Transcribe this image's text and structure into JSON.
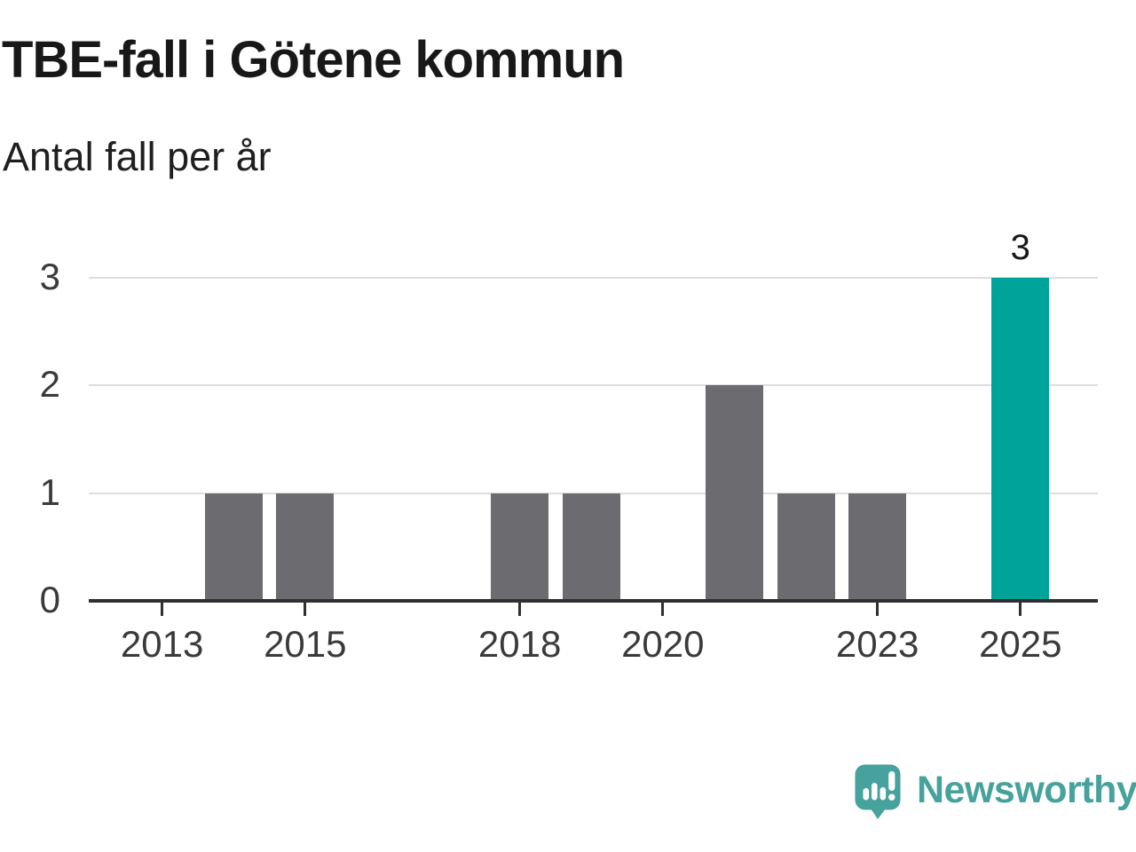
{
  "header": {
    "title": "TBE-fall i Götene kommun",
    "subtitle": "Antal fall per år"
  },
  "chart_data": {
    "type": "bar",
    "title": "TBE-fall i Götene kommun",
    "subtitle": "Antal fall per år",
    "ylabel": "Antal fall per år",
    "xlabel": "",
    "categories": [
      2012,
      2013,
      2014,
      2015,
      2016,
      2017,
      2018,
      2019,
      2020,
      2021,
      2022,
      2023,
      2024,
      2025
    ],
    "values": [
      0,
      0,
      1,
      1,
      0,
      0,
      1,
      1,
      0,
      2,
      1,
      1,
      0,
      3
    ],
    "highlight_category": 2025,
    "highlight_value_label": "3",
    "xticks": [
      2013,
      2015,
      2018,
      2020,
      2023,
      2025
    ],
    "yticks": [
      0,
      1,
      2,
      3
    ],
    "ylim": [
      0,
      3
    ],
    "grid": true,
    "legend": "none",
    "colors": {
      "bar": "#6c6b6f",
      "highlight": "#00a399",
      "axis": "#303030",
      "grid": "#dedede",
      "title_text": "#181818",
      "subtitle_text": "#1f1f1f",
      "tick_text": "#3a3a3a"
    }
  },
  "footer": {
    "brand": "Newsworthy",
    "logo_color": "#46a29c",
    "logo_icon": "speech-bubble-bar-chart-exclamation"
  }
}
